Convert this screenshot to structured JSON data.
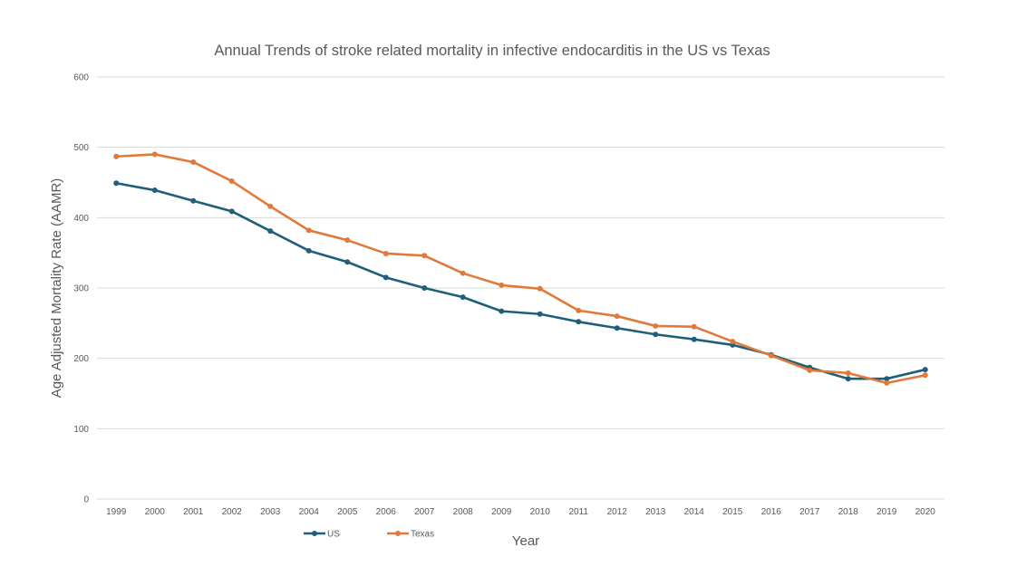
{
  "chart_data": {
    "type": "line",
    "title": "Annual Trends of stroke related mortality in infective endocarditis in the US vs Texas",
    "xlabel": "Year",
    "ylabel": "Age Adjusted Mortality Rate (AAMR)",
    "ylim": [
      0,
      600
    ],
    "yticks": [
      0,
      100,
      200,
      300,
      400,
      500,
      600
    ],
    "grid": true,
    "legend": "bottom-left",
    "categories": [
      "1999",
      "2000",
      "2001",
      "2002",
      "2003",
      "2004",
      "2005",
      "2006",
      "2007",
      "2008",
      "2009",
      "2010",
      "2011",
      "2012",
      "2013",
      "2014",
      "2015",
      "2016",
      "2017",
      "2018",
      "2019",
      "2020"
    ],
    "series": [
      {
        "name": "US",
        "color": "#1f5f7a",
        "values": [
          449,
          439,
          424,
          409,
          381,
          353,
          337,
          315,
          300,
          287,
          267,
          263,
          252,
          243,
          234,
          227,
          219,
          205,
          187,
          171,
          171,
          184
        ]
      },
      {
        "name": "Texas",
        "color": "#e07a3a",
        "values": [
          487,
          490,
          479,
          452,
          416,
          382,
          368,
          349,
          346,
          321,
          304,
          299,
          268,
          260,
          246,
          245,
          224,
          204,
          183,
          179,
          165,
          176
        ]
      }
    ]
  }
}
